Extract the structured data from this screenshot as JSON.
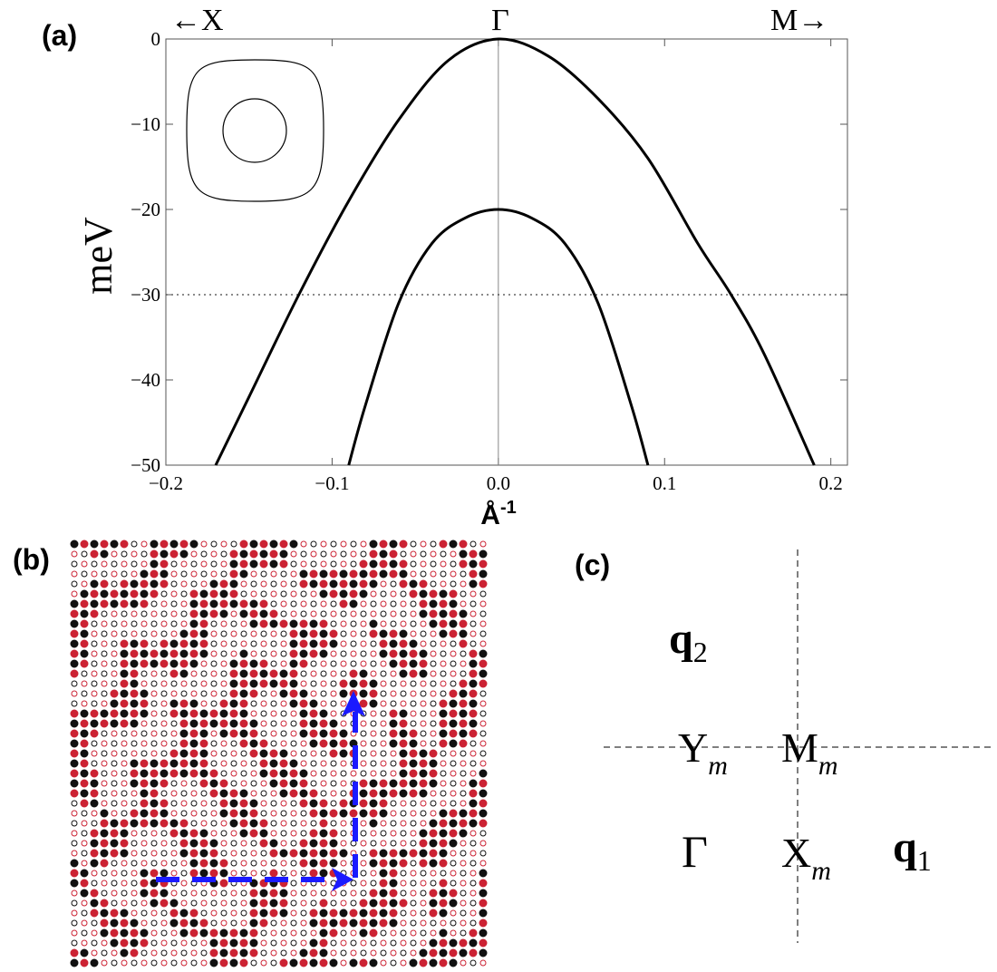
{
  "panels": {
    "a": {
      "label": "(a)"
    },
    "b": {
      "label": "(b)"
    },
    "c": {
      "label": "(c)"
    }
  },
  "chart_data": [
    {
      "type": "line",
      "title": "",
      "xlabel": "Å",
      "xlabel_sup": "-1",
      "ylabel": "meV",
      "xlim": [
        -0.2,
        0.21
      ],
      "ylim": [
        -50,
        0
      ],
      "xticks": [
        -0.2,
        -0.1,
        0.0,
        0.1,
        0.2
      ],
      "xtick_labels": [
        "−0.2",
        "−0.1",
        "0.0",
        "0.1",
        "0.2"
      ],
      "yticks": [
        0,
        -10,
        -20,
        -30,
        -40,
        -50
      ],
      "ytick_labels": [
        "0",
        "−10",
        "−20",
        "−30",
        "−40",
        "−50"
      ],
      "top_labels": {
        "left": "←X",
        "center": "Γ",
        "right": "M→"
      },
      "reference_lines": {
        "vertical_x": 0,
        "horizontal_y": -30,
        "horizontal_style": "dotted"
      },
      "grid": false,
      "legend": "none",
      "series": [
        {
          "x": [
            -0.17,
            -0.15,
            -0.12,
            -0.09,
            -0.06,
            -0.03,
            0.0,
            0.03,
            0.06,
            0.09,
            0.12,
            0.14,
            0.16,
            0.19
          ],
          "y": [
            -50,
            -42,
            -30,
            -19,
            -9.5,
            -2.5,
            0,
            -2,
            -7,
            -14,
            -24,
            -30,
            -37,
            -50
          ]
        },
        {
          "x": [
            -0.09,
            -0.08,
            -0.06,
            -0.04,
            -0.02,
            0.0,
            0.02,
            0.04,
            0.06,
            0.08,
            0.09
          ],
          "y": [
            -50,
            -43,
            -31,
            -24,
            -21,
            -20,
            -21,
            -24,
            -31,
            -43,
            -50
          ]
        }
      ],
      "inset": {
        "description_shapes": [
          "rounded-square",
          "circle"
        ]
      }
    },
    {
      "type": "diagram",
      "point_colors": {
        "dark": "#111111",
        "red": "#cc2233"
      },
      "arrow_color": "#1a1aff"
    },
    {
      "type": "diagram",
      "labels": {
        "q2": {
          "main": "q",
          "sub": "2"
        },
        "q1": {
          "main": "q",
          "sub": "1"
        },
        "gamma": "Γ",
        "ym": {
          "main": "Y",
          "sub": "m"
        },
        "mm": {
          "main": "M",
          "sub": "m"
        },
        "xm": {
          "main": "X",
          "sub": "m"
        }
      }
    }
  ]
}
